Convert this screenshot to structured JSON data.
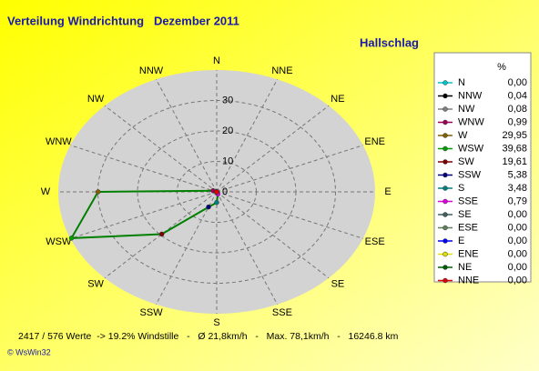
{
  "chart_data": {
    "type": "radar",
    "title": "Verteilung Windrichtung   Dezember 2011",
    "subtitle": "Hallschlag",
    "legend_header": "%",
    "categories": [
      "N",
      "NNW",
      "NW",
      "WNW",
      "W",
      "WSW",
      "SW",
      "SSW",
      "S",
      "SSE",
      "SE",
      "ESE",
      "E",
      "ENE",
      "NE",
      "NNE"
    ],
    "values": [
      0,
      0.04,
      0.08,
      0.99,
      29.95,
      39.68,
      19.61,
      5.38,
      3.48,
      0.79,
      0,
      0,
      0,
      0,
      0,
      0
    ],
    "value_labels": [
      "0,00",
      "0,04",
      "0,08",
      "0,99",
      "29,95",
      "39,68",
      "19,61",
      "5,38",
      "3,48",
      "0,79",
      "0,00",
      "0,00",
      "0,00",
      "0,00",
      "0,00",
      "0,00"
    ],
    "colors": [
      "#00c8c8",
      "#000000",
      "#808080",
      "#a0005a",
      "#806000",
      "#00a000",
      "#800000",
      "#000080",
      "#008080",
      "#e000e0",
      "#406060",
      "#608060",
      "#0000ff",
      "#e0e000",
      "#006000",
      "#e00000"
    ],
    "line_color": "#008000",
    "rlim": [
      0,
      40
    ],
    "rticks": [
      0,
      10,
      20,
      30
    ],
    "grid": true,
    "footer": "2417 / 576 Werte  -> 19.2% Windstille   -   Ø 21,8km/h   -   Max. 78,1km/h   -   16246.8 km",
    "credit": "© WsWin32"
  }
}
